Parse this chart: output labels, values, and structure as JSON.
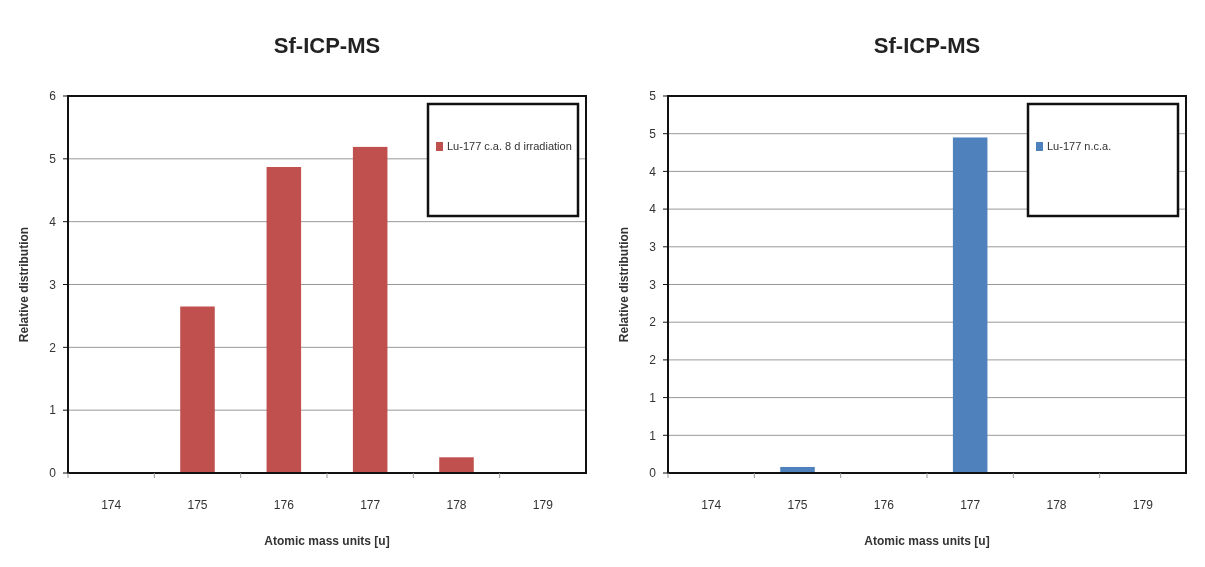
{
  "chart_data": [
    {
      "type": "bar",
      "title": "Sf-ICP-MS",
      "xlabel": "Atomic mass units [u]",
      "ylabel": "Relative distribution",
      "categories": [
        "174",
        "175",
        "176",
        "177",
        "178",
        "179"
      ],
      "series": [
        {
          "name": "Lu-177 c.a. 8 d irradiation",
          "color": "#c0504d",
          "values": [
            0,
            2.65,
            4.87,
            5.19,
            0.25,
            0
          ]
        }
      ],
      "ylim": [
        0,
        6
      ],
      "yticks": [
        0,
        1,
        2,
        3,
        4,
        5,
        6
      ],
      "grid": "y",
      "legend": "top right"
    },
    {
      "type": "bar",
      "title": "Sf-ICP-MS",
      "xlabel": "Atomic mass units [u]",
      "ylabel": "Relative distribution",
      "categories": [
        "174",
        "175",
        "176",
        "177",
        "178",
        "179"
      ],
      "series": [
        {
          "name": "Lu-177 n.c.a.",
          "color": "#4f81bd",
          "values": [
            0,
            0.08,
            0,
            4.45,
            0,
            0
          ]
        }
      ],
      "ylim": [
        0,
        5
      ],
      "yticks": [
        0,
        {
          "value": 0.5,
          "label": "1"
        },
        1,
        {
          "value": 1.5,
          "label": "2"
        },
        2,
        {
          "value": 2.5,
          "label": "3"
        },
        3,
        {
          "value": 3.5,
          "label": "4"
        },
        4,
        {
          "value": 4.5,
          "label": "5"
        },
        5
      ],
      "grid": "y",
      "legend": "top right"
    }
  ]
}
